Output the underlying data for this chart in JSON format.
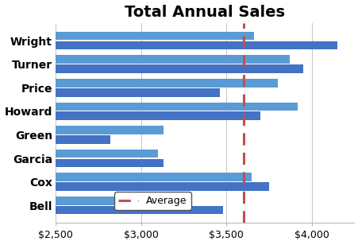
{
  "title": "Total Annual Sales",
  "categories": [
    "Wright",
    "Turner",
    "Price",
    "Howard",
    "Green",
    "Garcia",
    "Cox",
    "Bell"
  ],
  "bar1_values": [
    4150,
    3950,
    3460,
    3700,
    2820,
    3130,
    3750,
    3480
  ],
  "bar2_values": [
    3660,
    3870,
    3800,
    3920,
    3130,
    3100,
    3650,
    2970
  ],
  "bar_color1": "#4472C4",
  "bar_color2": "#5B9BD5",
  "average_line": 3600,
  "average_color": "#C0504D",
  "xlim_min": 2500,
  "xlim_max": 4250,
  "xticks": [
    2500,
    3000,
    3500,
    4000
  ],
  "xtick_labels": [
    "$2,500",
    "$3,000",
    "$3,500",
    "$4,000"
  ],
  "title_fontsize": 14,
  "tick_fontsize": 9,
  "label_fontsize": 10,
  "background_color": "#FFFFFF",
  "bar_height": 0.36,
  "bar_gap": 0.04,
  "legend_label": "Average"
}
